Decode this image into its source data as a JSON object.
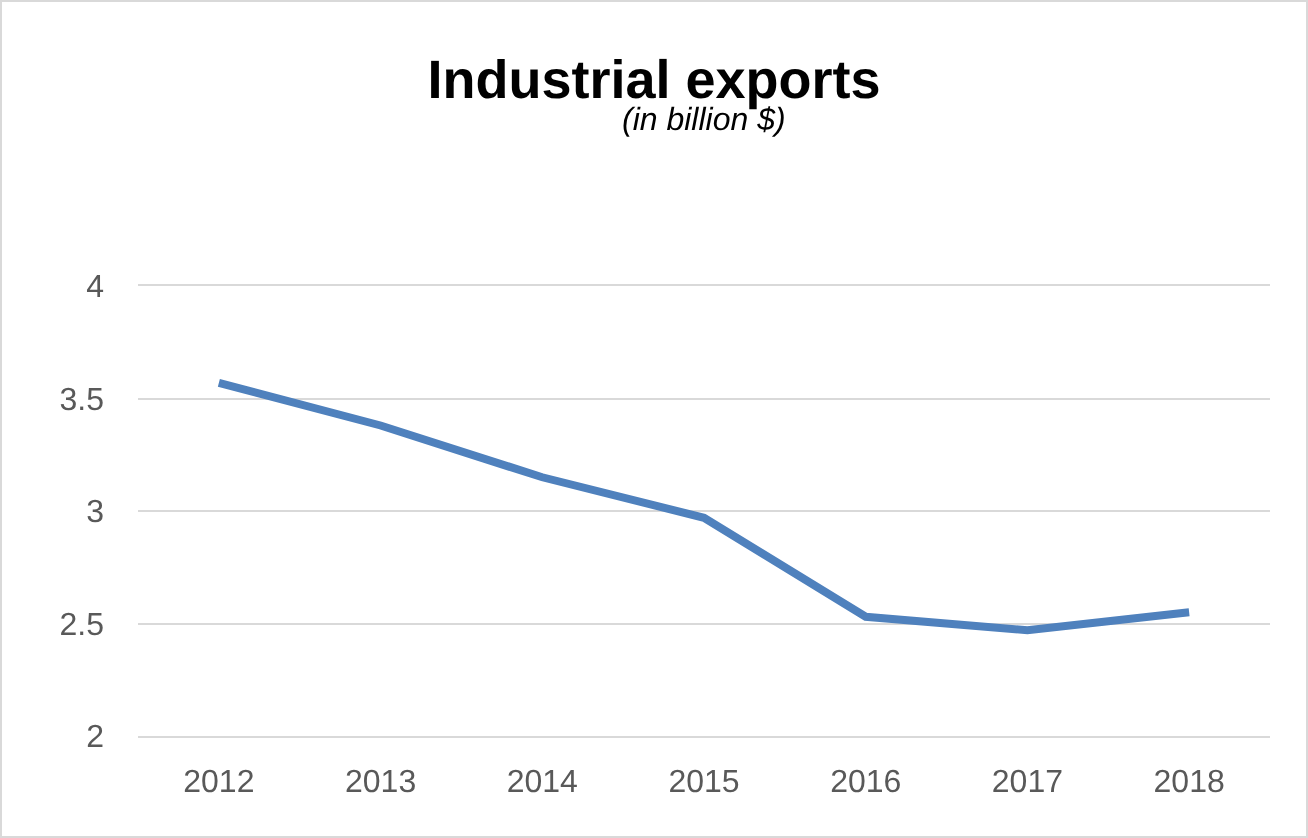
{
  "chart_data": {
    "type": "line",
    "title": "Industrial exports",
    "subtitle": "(in billion $)",
    "categories": [
      "2012",
      "2013",
      "2014",
      "2015",
      "2016",
      "2017",
      "2018"
    ],
    "series": [
      {
        "color": "#4f81bd",
        "values": [
          3.57,
          3.38,
          3.15,
          2.97,
          2.53,
          2.47,
          2.55
        ]
      }
    ],
    "ylim": [
      2,
      4
    ],
    "yticks": [
      2,
      2.5,
      3,
      3.5,
      4
    ],
    "grid": "y",
    "marker": "none",
    "line_style": "solid"
  }
}
